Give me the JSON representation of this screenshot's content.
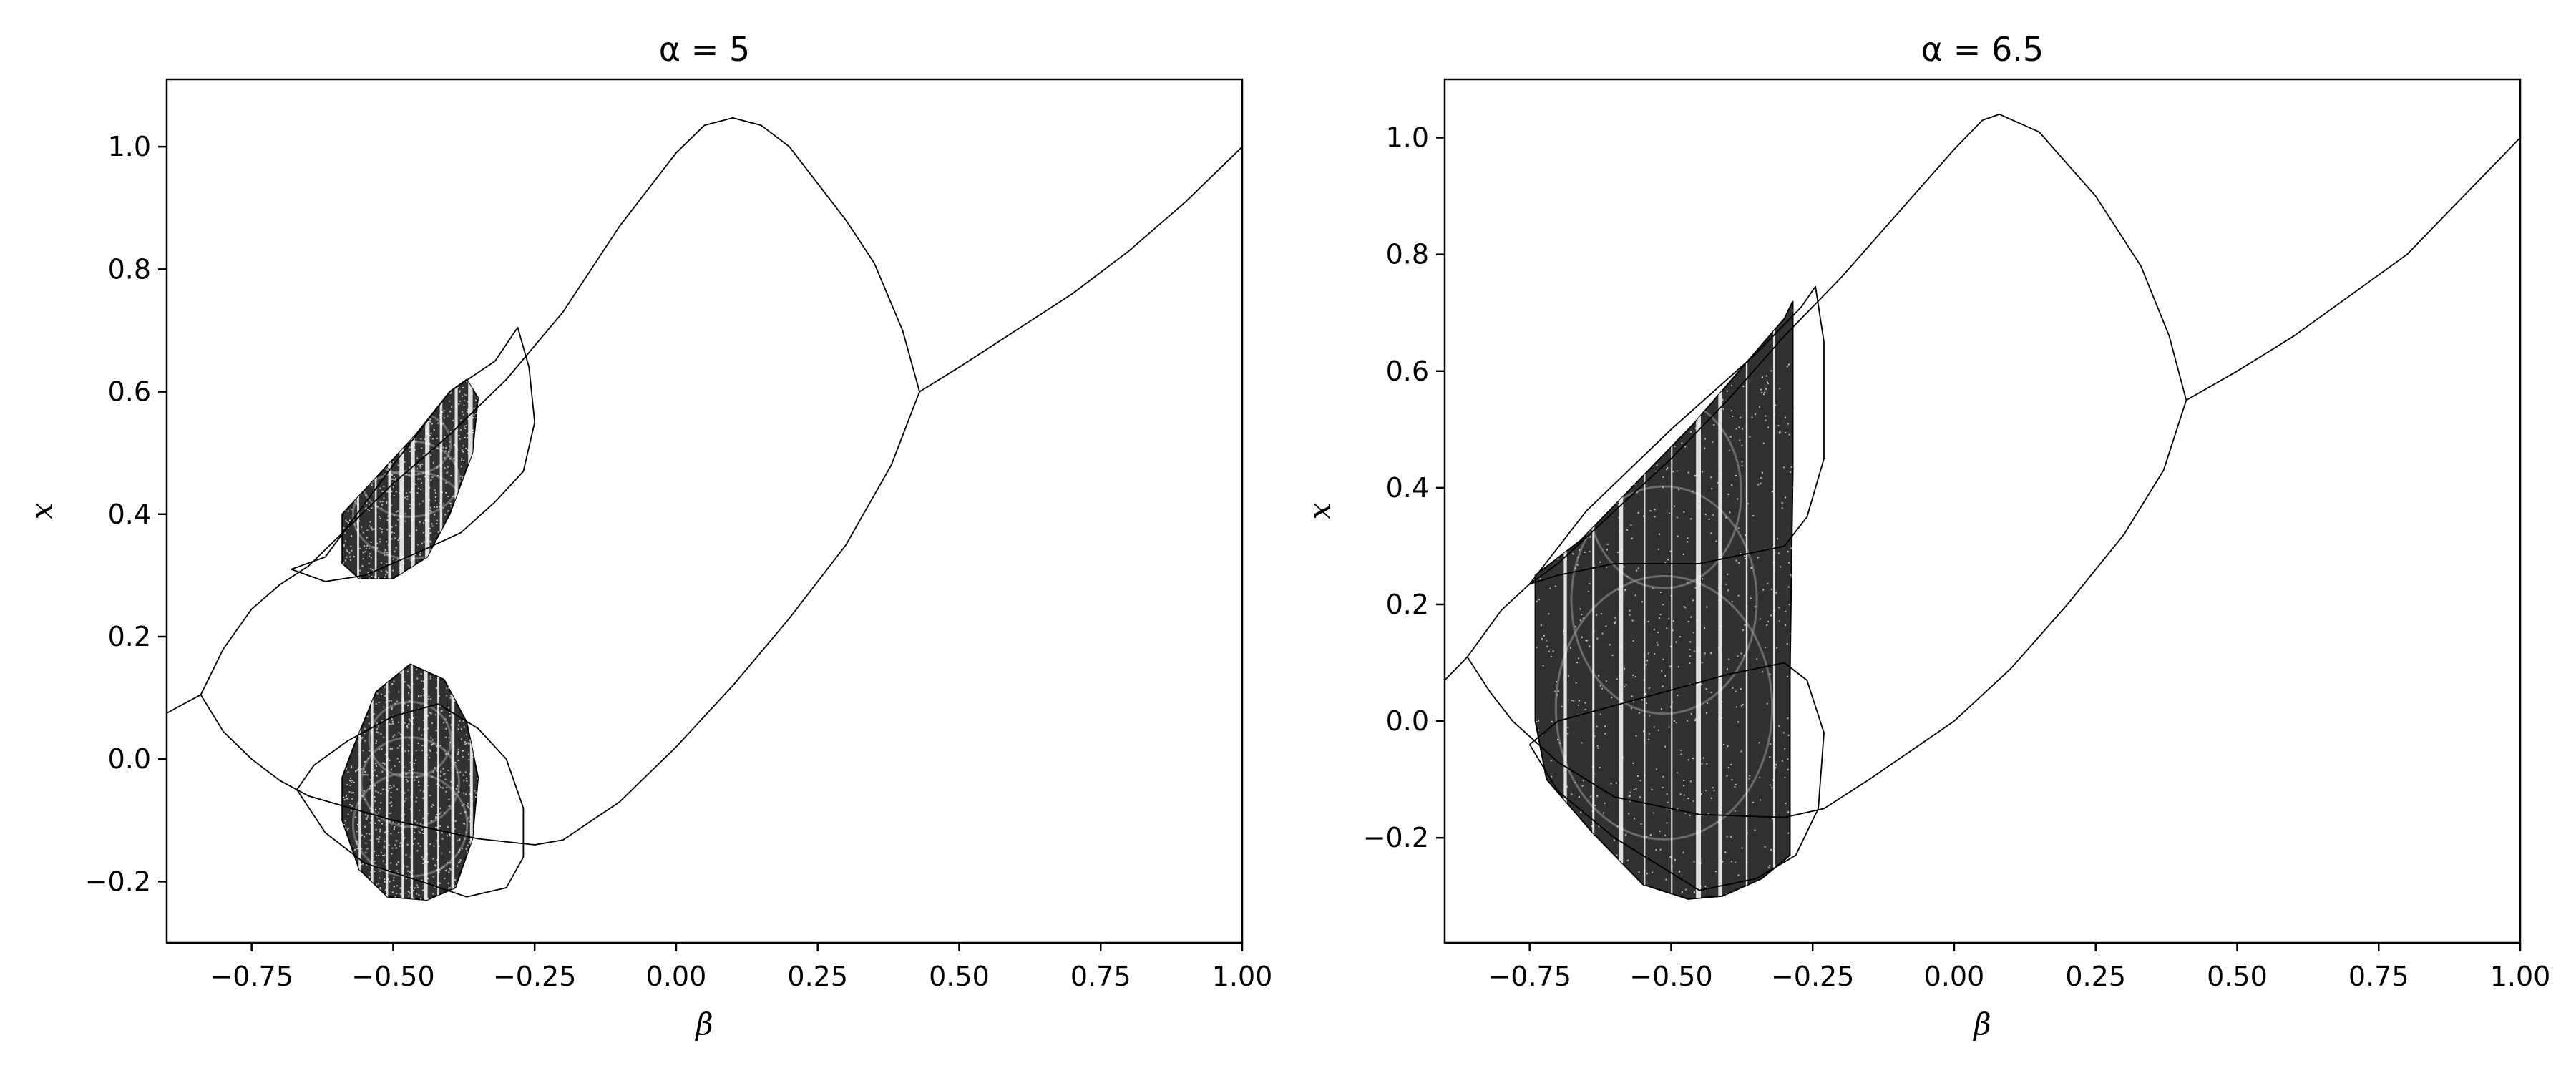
{
  "figure": {
    "background": "#ffffff",
    "ink": "#000000"
  },
  "chart_data": [
    {
      "type": "scatter",
      "chart_kind": "bifurcation diagram",
      "title": "α = 5",
      "xlabel": "β",
      "ylabel": "x",
      "xlim": [
        -0.9,
        1.0
      ],
      "ylim": [
        -0.3,
        1.11
      ],
      "xticks": [
        -0.75,
        -0.5,
        -0.25,
        0.0,
        0.25,
        0.5,
        0.75,
        1.0
      ],
      "xtick_labels": [
        "−0.75",
        "−0.50",
        "−0.25",
        "0.00",
        "0.25",
        "0.50",
        "0.75",
        "1.00"
      ],
      "yticks": [
        -0.2,
        0.0,
        0.2,
        0.4,
        0.6,
        0.8,
        1.0
      ],
      "ytick_labels": [
        "−0.2",
        "0.0",
        "0.2",
        "0.4",
        "0.6",
        "0.8",
        "1.0"
      ],
      "grid": false,
      "series": [
        {
          "role": "fixed-point branch (low β)",
          "points": [
            [
              -0.9,
              0.075
            ],
            [
              -0.87,
              0.09
            ],
            [
              -0.84,
              0.105
            ]
          ]
        },
        {
          "role": "period-2 branch, upper",
          "points": [
            [
              -0.84,
              0.105
            ],
            [
              -0.8,
              0.18
            ],
            [
              -0.75,
              0.245
            ],
            [
              -0.7,
              0.285
            ],
            [
              -0.65,
              0.315
            ],
            [
              -0.6,
              0.36
            ],
            [
              -0.5,
              0.45
            ],
            [
              -0.4,
              0.53
            ],
            [
              -0.3,
              0.62
            ],
            [
              -0.2,
              0.73
            ],
            [
              -0.1,
              0.87
            ],
            [
              0.0,
              0.99
            ],
            [
              0.05,
              1.035
            ],
            [
              0.1,
              1.047
            ],
            [
              0.15,
              1.035
            ],
            [
              0.2,
              1.0
            ],
            [
              0.3,
              0.88
            ],
            [
              0.35,
              0.81
            ],
            [
              0.4,
              0.7
            ],
            [
              0.43,
              0.6
            ]
          ]
        },
        {
          "role": "period-2 branch, lower",
          "points": [
            [
              -0.84,
              0.105
            ],
            [
              -0.8,
              0.045
            ],
            [
              -0.75,
              0.0
            ],
            [
              -0.7,
              -0.035
            ],
            [
              -0.65,
              -0.06
            ],
            [
              -0.5,
              -0.1
            ],
            [
              -0.35,
              -0.13
            ],
            [
              -0.25,
              -0.14
            ],
            [
              -0.2,
              -0.132
            ],
            [
              -0.1,
              -0.07
            ],
            [
              0.0,
              0.02
            ],
            [
              0.1,
              0.12
            ],
            [
              0.2,
              0.23
            ],
            [
              0.3,
              0.35
            ],
            [
              0.38,
              0.48
            ],
            [
              0.43,
              0.6
            ]
          ]
        },
        {
          "role": "fixed-point branch (high β)",
          "points": [
            [
              0.43,
              0.6
            ],
            [
              0.5,
              0.64
            ],
            [
              0.6,
              0.7
            ],
            [
              0.7,
              0.76
            ],
            [
              0.8,
              0.83
            ],
            [
              0.9,
              0.91
            ],
            [
              1.0,
              1.0
            ]
          ]
        },
        {
          "role": "upper period-doubling bubble",
          "points": [
            [
              -0.68,
              0.31
            ],
            [
              -0.62,
              0.33
            ],
            [
              -0.5,
              0.48
            ],
            [
              -0.4,
              0.6
            ],
            [
              -0.32,
              0.65
            ],
            [
              -0.28,
              0.705
            ],
            [
              -0.26,
              0.64
            ],
            [
              -0.25,
              0.55
            ],
            [
              -0.27,
              0.47
            ],
            [
              -0.32,
              0.42
            ],
            [
              -0.38,
              0.37
            ],
            [
              -0.45,
              0.34
            ],
            [
              -0.55,
              0.3
            ],
            [
              -0.62,
              0.29
            ],
            [
              -0.68,
              0.31
            ]
          ]
        },
        {
          "role": "lower period-doubling bubble",
          "points": [
            [
              -0.67,
              -0.05
            ],
            [
              -0.62,
              -0.12
            ],
            [
              -0.55,
              -0.17
            ],
            [
              -0.45,
              -0.2
            ],
            [
              -0.37,
              -0.225
            ],
            [
              -0.3,
              -0.21
            ],
            [
              -0.27,
              -0.16
            ],
            [
              -0.27,
              -0.08
            ],
            [
              -0.3,
              0.0
            ],
            [
              -0.35,
              0.05
            ],
            [
              -0.42,
              0.09
            ],
            [
              -0.5,
              0.07
            ],
            [
              -0.58,
              0.03
            ],
            [
              -0.64,
              -0.01
            ],
            [
              -0.67,
              -0.05
            ]
          ]
        },
        {
          "role": "chaotic band, upper",
          "polygon": [
            [
              -0.59,
              0.4
            ],
            [
              -0.53,
              0.46
            ],
            [
              -0.46,
              0.53
            ],
            [
              -0.4,
              0.6
            ],
            [
              -0.37,
              0.62
            ],
            [
              -0.35,
              0.59
            ],
            [
              -0.36,
              0.5
            ],
            [
              -0.4,
              0.4
            ],
            [
              -0.44,
              0.33
            ],
            [
              -0.5,
              0.295
            ],
            [
              -0.56,
              0.295
            ],
            [
              -0.59,
              0.32
            ]
          ]
        },
        {
          "role": "chaotic band, lower",
          "polygon": [
            [
              -0.57,
              0.02
            ],
            [
              -0.53,
              0.11
            ],
            [
              -0.47,
              0.155
            ],
            [
              -0.41,
              0.13
            ],
            [
              -0.37,
              0.06
            ],
            [
              -0.35,
              -0.03
            ],
            [
              -0.36,
              -0.13
            ],
            [
              -0.39,
              -0.21
            ],
            [
              -0.44,
              -0.23
            ],
            [
              -0.51,
              -0.225
            ],
            [
              -0.56,
              -0.18
            ],
            [
              -0.59,
              -0.1
            ],
            [
              -0.59,
              -0.03
            ]
          ]
        }
      ]
    },
    {
      "type": "scatter",
      "chart_kind": "bifurcation diagram",
      "title": "α = 6.5",
      "xlabel": "β",
      "ylabel": "x",
      "xlim": [
        -0.9,
        1.0
      ],
      "ylim": [
        -0.38,
        1.1
      ],
      "xticks": [
        -0.75,
        -0.5,
        -0.25,
        0.0,
        0.25,
        0.5,
        0.75,
        1.0
      ],
      "xtick_labels": [
        "−0.75",
        "−0.50",
        "−0.25",
        "0.00",
        "0.25",
        "0.50",
        "0.75",
        "1.00"
      ],
      "yticks": [
        -0.2,
        0.0,
        0.2,
        0.4,
        0.6,
        0.8,
        1.0
      ],
      "ytick_labels": [
        "−0.2",
        "0.0",
        "0.2",
        "0.4",
        "0.6",
        "0.8",
        "1.0"
      ],
      "grid": false,
      "series": [
        {
          "role": "fixed-point branch (low β)",
          "points": [
            [
              -0.9,
              0.07
            ],
            [
              -0.88,
              0.09
            ],
            [
              -0.86,
              0.11
            ]
          ]
        },
        {
          "role": "period-2 branch, upper",
          "points": [
            [
              -0.86,
              0.11
            ],
            [
              -0.8,
              0.19
            ],
            [
              -0.75,
              0.235
            ],
            [
              -0.7,
              0.27
            ],
            [
              -0.6,
              0.36
            ],
            [
              -0.5,
              0.45
            ],
            [
              -0.4,
              0.55
            ],
            [
              -0.3,
              0.66
            ],
            [
              -0.2,
              0.76
            ],
            [
              -0.1,
              0.87
            ],
            [
              0.0,
              0.98
            ],
            [
              0.05,
              1.03
            ],
            [
              0.08,
              1.04
            ],
            [
              0.15,
              1.01
            ],
            [
              0.25,
              0.9
            ],
            [
              0.33,
              0.78
            ],
            [
              0.38,
              0.66
            ],
            [
              0.41,
              0.55
            ]
          ]
        },
        {
          "role": "period-2 branch, lower",
          "points": [
            [
              -0.86,
              0.11
            ],
            [
              -0.82,
              0.05
            ],
            [
              -0.78,
              0.0
            ],
            [
              -0.74,
              -0.035
            ],
            [
              -0.7,
              -0.07
            ],
            [
              -0.6,
              -0.13
            ],
            [
              -0.45,
              -0.16
            ],
            [
              -0.3,
              -0.165
            ],
            [
              -0.23,
              -0.15
            ],
            [
              -0.15,
              -0.1
            ],
            [
              0.0,
              0.0
            ],
            [
              0.1,
              0.09
            ],
            [
              0.2,
              0.2
            ],
            [
              0.3,
              0.32
            ],
            [
              0.37,
              0.43
            ],
            [
              0.41,
              0.55
            ]
          ]
        },
        {
          "role": "fixed-point branch (high β)",
          "points": [
            [
              0.41,
              0.55
            ],
            [
              0.5,
              0.6
            ],
            [
              0.6,
              0.66
            ],
            [
              0.7,
              0.73
            ],
            [
              0.8,
              0.8
            ],
            [
              0.9,
              0.9
            ],
            [
              1.0,
              1.0
            ]
          ]
        },
        {
          "role": "upper period-doubling bubble",
          "points": [
            [
              -0.75,
              0.235
            ],
            [
              -0.65,
              0.36
            ],
            [
              -0.5,
              0.5
            ],
            [
              -0.35,
              0.63
            ],
            [
              -0.27,
              0.71
            ],
            [
              -0.245,
              0.745
            ],
            [
              -0.23,
              0.65
            ],
            [
              -0.23,
              0.45
            ],
            [
              -0.26,
              0.35
            ],
            [
              -0.3,
              0.3
            ],
            [
              -0.45,
              0.27
            ],
            [
              -0.6,
              0.27
            ],
            [
              -0.7,
              0.25
            ],
            [
              -0.75,
              0.235
            ]
          ]
        },
        {
          "role": "lower period-doubling bubble",
          "points": [
            [
              -0.75,
              -0.04
            ],
            [
              -0.7,
              -0.12
            ],
            [
              -0.6,
              -0.2
            ],
            [
              -0.45,
              -0.29
            ],
            [
              -0.35,
              -0.27
            ],
            [
              -0.28,
              -0.23
            ],
            [
              -0.24,
              -0.15
            ],
            [
              -0.23,
              -0.02
            ],
            [
              -0.26,
              0.07
            ],
            [
              -0.3,
              0.1
            ],
            [
              -0.4,
              0.08
            ],
            [
              -0.55,
              0.04
            ],
            [
              -0.7,
              0.0
            ],
            [
              -0.75,
              -0.04
            ]
          ]
        },
        {
          "role": "chaotic band",
          "polygon": [
            [
              -0.74,
              0.25
            ],
            [
              -0.66,
              0.31
            ],
            [
              -0.56,
              0.41
            ],
            [
              -0.46,
              0.51
            ],
            [
              -0.38,
              0.6
            ],
            [
              -0.3,
              0.69
            ],
            [
              -0.285,
              0.72
            ],
            [
              -0.285,
              0.43
            ],
            [
              -0.29,
              0.08
            ],
            [
              -0.29,
              -0.23
            ],
            [
              -0.34,
              -0.27
            ],
            [
              -0.41,
              -0.3
            ],
            [
              -0.47,
              -0.305
            ],
            [
              -0.55,
              -0.28
            ],
            [
              -0.64,
              -0.19
            ],
            [
              -0.72,
              -0.1
            ],
            [
              -0.74,
              0.0
            ]
          ]
        }
      ]
    }
  ]
}
